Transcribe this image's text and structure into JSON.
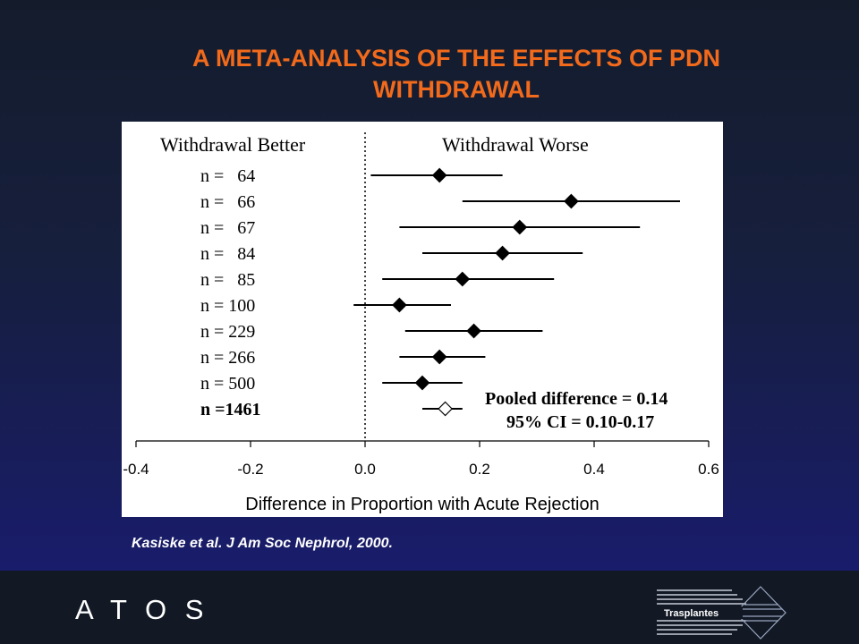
{
  "slide": {
    "title_line1": "A META-ANALYSIS OF THE EFFECTS OF PDN",
    "title_line2": "WITHDRAWAL",
    "citation": "Kasiske et al. J Am Soc Nephrol, 2000.",
    "brand": "A T O S",
    "logo_text": "Trasplantes"
  },
  "colors": {
    "title": "#f26a1b",
    "background_top": "#141c2c",
    "background_bottom": "#191c6a",
    "chart_background": "#ffffff",
    "marks": "#000000"
  },
  "chart_data": {
    "type": "forest",
    "header_left": "Withdrawal Better",
    "header_right": "Withdrawal Worse",
    "xlabel": "Difference in Proportion with Acute Rejection",
    "xlim": [
      -0.4,
      0.6
    ],
    "xticks": [
      "-0.4",
      "-0.2",
      "0.0",
      "0.2",
      "0.4",
      "0.6"
    ],
    "reference_line": 0,
    "studies": [
      {
        "label": "n =   64",
        "estimate": 0.13,
        "ci": [
          0.01,
          0.24
        ]
      },
      {
        "label": "n =   66",
        "estimate": 0.36,
        "ci": [
          0.17,
          0.55
        ]
      },
      {
        "label": "n =   67",
        "estimate": 0.27,
        "ci": [
          0.06,
          0.48
        ]
      },
      {
        "label": "n =   84",
        "estimate": 0.24,
        "ci": [
          0.1,
          0.38
        ]
      },
      {
        "label": "n =   85",
        "estimate": 0.17,
        "ci": [
          0.03,
          0.33
        ]
      },
      {
        "label": "n = 100",
        "estimate": 0.06,
        "ci": [
          -0.02,
          0.15
        ]
      },
      {
        "label": "n = 229",
        "estimate": 0.19,
        "ci": [
          0.07,
          0.31
        ]
      },
      {
        "label": "n = 266",
        "estimate": 0.13,
        "ci": [
          0.06,
          0.21
        ]
      },
      {
        "label": "n = 500",
        "estimate": 0.1,
        "ci": [
          0.03,
          0.17
        ]
      }
    ],
    "pooled": {
      "label": "n =1461",
      "estimate": 0.14,
      "ci": [
        0.1,
        0.17
      ]
    },
    "annotation_line1": "Pooled difference = 0.14",
    "annotation_line2": "95% CI = 0.10-0.17"
  }
}
